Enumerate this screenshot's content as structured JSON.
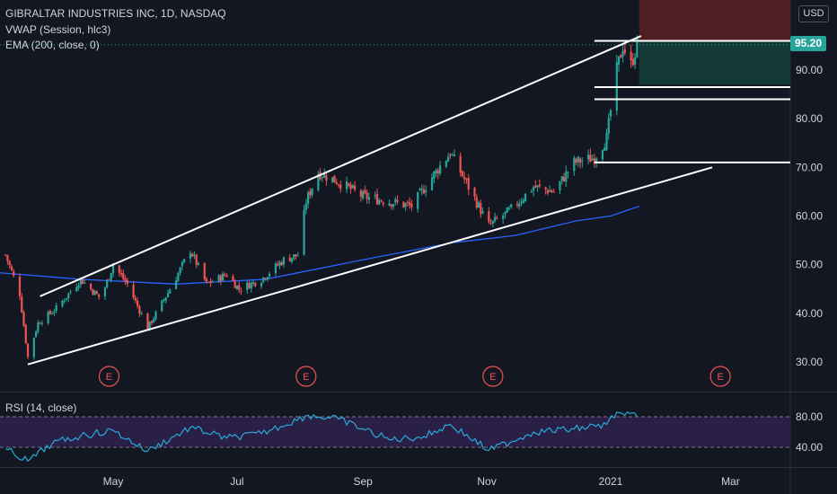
{
  "header": {
    "title": "GIBRALTAR INDUSTRIES INC, 1D, NASDAQ",
    "indicator_vwap": "VWAP (Session, hlc3)",
    "indicator_ema": "EMA (200, close, 0)",
    "currency": "USD",
    "last_price": "95.20"
  },
  "rsi_panel": {
    "label": "RSI (14, close)",
    "levels": [
      "80.00",
      "40.00"
    ]
  },
  "colors": {
    "background": "#131722",
    "up": "#26a69a",
    "down": "#ef5350",
    "ema": "#2962ff",
    "rsi": "#2aa9d8",
    "rsi_band": "#2a1f47",
    "trendline": "#ffffff",
    "short_zone_top": "#5b1f24",
    "short_zone_bottom": "#133c3a"
  },
  "chart_data": {
    "type": "candlestick",
    "symbol": "GIBRALTAR INDUSTRIES INC",
    "interval": "1D",
    "exchange": "NASDAQ",
    "y_axis_ticks": [
      "30.00",
      "40.00",
      "50.00",
      "60.00",
      "70.00",
      "80.00",
      "90.00"
    ],
    "x_axis_ticks": [
      "May",
      "Jul",
      "Sep",
      "Nov",
      "2021",
      "Mar"
    ],
    "ylim": [
      26,
      106
    ],
    "price_path": [
      {
        "date": "2020-03-09",
        "close": 52
      },
      {
        "date": "2020-03-16",
        "close": 44
      },
      {
        "date": "2020-03-20",
        "close": 31
      },
      {
        "date": "2020-03-25",
        "close": 38
      },
      {
        "date": "2020-04-03",
        "close": 41
      },
      {
        "date": "2020-04-15",
        "close": 47
      },
      {
        "date": "2020-04-25",
        "close": 43
      },
      {
        "date": "2020-05-01",
        "close": 50
      },
      {
        "date": "2020-05-08",
        "close": 46
      },
      {
        "date": "2020-05-18",
        "close": 37
      },
      {
        "date": "2020-05-29",
        "close": 45
      },
      {
        "date": "2020-06-08",
        "close": 53
      },
      {
        "date": "2020-06-16",
        "close": 46
      },
      {
        "date": "2020-06-26",
        "close": 48
      },
      {
        "date": "2020-07-02",
        "close": 45
      },
      {
        "date": "2020-07-13",
        "close": 47
      },
      {
        "date": "2020-07-24",
        "close": 51
      },
      {
        "date": "2020-07-31",
        "close": 52
      },
      {
        "date": "2020-08-04",
        "close": 63
      },
      {
        "date": "2020-08-10",
        "close": 69
      },
      {
        "date": "2020-08-20",
        "close": 67
      },
      {
        "date": "2020-09-01",
        "close": 64
      },
      {
        "date": "2020-09-14",
        "close": 63
      },
      {
        "date": "2020-09-25",
        "close": 62
      },
      {
        "date": "2020-10-05",
        "close": 68
      },
      {
        "date": "2020-10-14",
        "close": 73
      },
      {
        "date": "2020-10-23",
        "close": 66
      },
      {
        "date": "2020-11-02",
        "close": 58
      },
      {
        "date": "2020-11-12",
        "close": 61
      },
      {
        "date": "2020-11-24",
        "close": 66
      },
      {
        "date": "2020-12-04",
        "close": 65
      },
      {
        "date": "2020-12-14",
        "close": 71
      },
      {
        "date": "2020-12-24",
        "close": 72
      },
      {
        "date": "2020-12-30",
        "close": 76
      },
      {
        "date": "2021-01-04",
        "close": 90
      },
      {
        "date": "2021-01-07",
        "close": 95
      },
      {
        "date": "2021-01-11",
        "close": 91
      },
      {
        "date": "2021-01-14",
        "close": 95.2
      }
    ],
    "ema_200": [
      {
        "date": "2020-03-01",
        "value": 48.5
      },
      {
        "date": "2020-04-15",
        "value": 47
      },
      {
        "date": "2020-06-01",
        "value": 46
      },
      {
        "date": "2020-07-15",
        "value": 47
      },
      {
        "date": "2020-09-01",
        "value": 51
      },
      {
        "date": "2020-10-15",
        "value": 54.5
      },
      {
        "date": "2020-11-15",
        "value": 56
      },
      {
        "date": "2020-12-15",
        "value": 59
      },
      {
        "date": "2021-01-01",
        "value": 60
      },
      {
        "date": "2021-01-15",
        "value": 62
      }
    ],
    "trendlines": [
      {
        "name": "channel-upper",
        "from": {
          "date": "2020-03-26",
          "price": 43.5
        },
        "to": {
          "date": "2021-01-16",
          "price": 97.0
        }
      },
      {
        "name": "channel-lower",
        "from": {
          "date": "2020-03-20",
          "price": 29.5
        },
        "to": {
          "date": "2021-02-20",
          "price": 70.0
        }
      }
    ],
    "horizontal_levels": [
      {
        "price": 96.0,
        "from_date": "2020-12-24"
      },
      {
        "price": 86.5,
        "from_date": "2020-12-24"
      },
      {
        "price": 84.0,
        "from_date": "2020-12-24"
      },
      {
        "price": 71.0,
        "from_date": "2020-12-24"
      }
    ],
    "position_zone": {
      "from_date": "2021-01-15",
      "entry": 96.0,
      "upper": 105.5,
      "lower": 87.0
    },
    "earnings_markers": [
      {
        "date": "2020-04-29",
        "label": "E"
      },
      {
        "date": "2020-08-04",
        "label": "E"
      },
      {
        "date": "2020-11-04",
        "label": "E"
      },
      {
        "date": "2021-02-24",
        "label": "E"
      }
    ],
    "rsi": {
      "levels": [
        80,
        40
      ],
      "band": [
        40,
        80
      ],
      "ylim": [
        20,
        100
      ],
      "values": [
        {
          "date": "2020-03-09",
          "value": 38
        },
        {
          "date": "2020-03-20",
          "value": 22
        },
        {
          "date": "2020-04-01",
          "value": 45
        },
        {
          "date": "2020-04-15",
          "value": 55
        },
        {
          "date": "2020-05-01",
          "value": 62
        },
        {
          "date": "2020-05-18",
          "value": 35
        },
        {
          "date": "2020-06-08",
          "value": 66
        },
        {
          "date": "2020-06-26",
          "value": 52
        },
        {
          "date": "2020-07-13",
          "value": 58
        },
        {
          "date": "2020-08-05",
          "value": 82
        },
        {
          "date": "2020-08-20",
          "value": 77
        },
        {
          "date": "2020-09-14",
          "value": 50
        },
        {
          "date": "2020-10-01",
          "value": 54
        },
        {
          "date": "2020-10-14",
          "value": 70
        },
        {
          "date": "2020-11-02",
          "value": 36
        },
        {
          "date": "2020-11-24",
          "value": 60
        },
        {
          "date": "2020-12-14",
          "value": 64
        },
        {
          "date": "2020-12-30",
          "value": 70
        },
        {
          "date": "2021-01-04",
          "value": 86
        },
        {
          "date": "2021-01-08",
          "value": 82
        },
        {
          "date": "2021-01-14",
          "value": 80
        }
      ]
    }
  }
}
